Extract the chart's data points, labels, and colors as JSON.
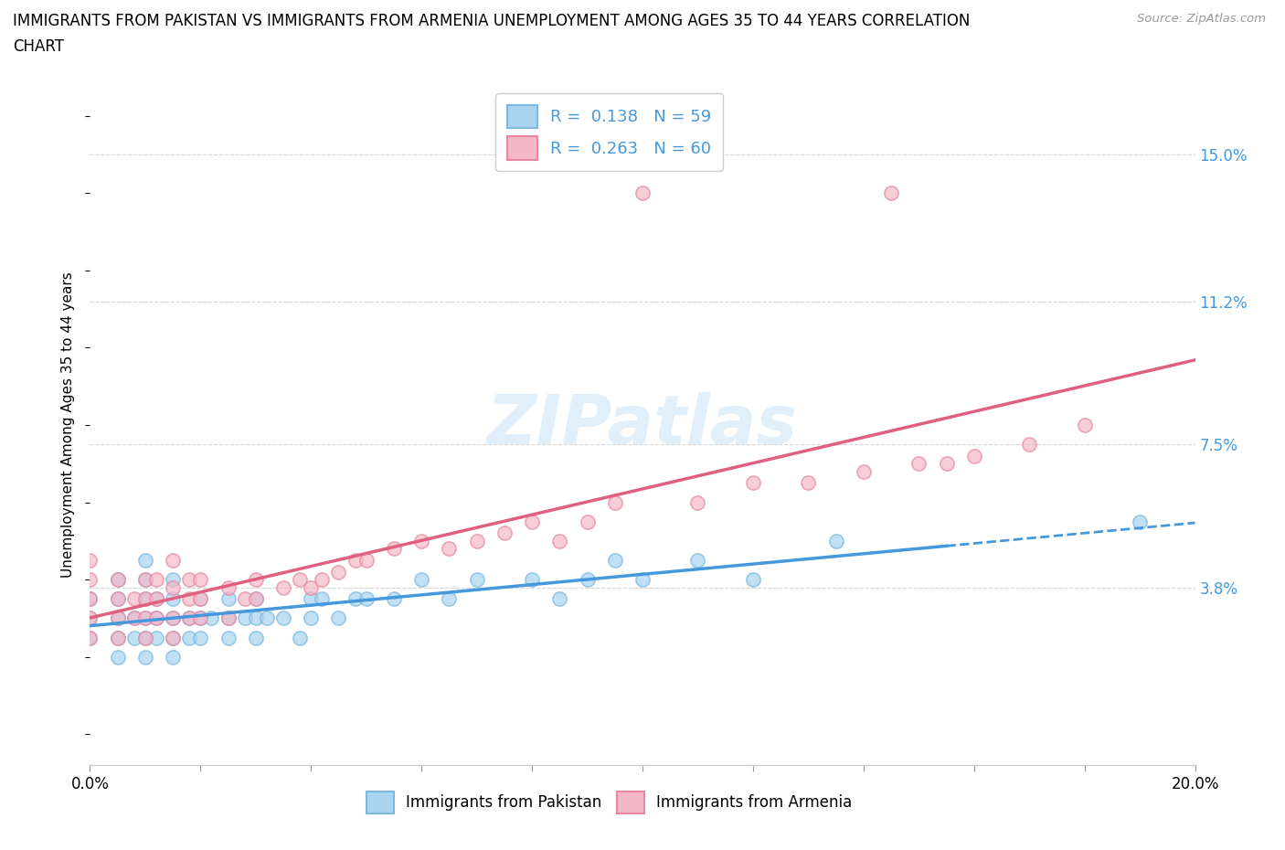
{
  "title_line1": "IMMIGRANTS FROM PAKISTAN VS IMMIGRANTS FROM ARMENIA UNEMPLOYMENT AMONG AGES 35 TO 44 YEARS CORRELATION",
  "title_line2": "CHART",
  "source_text": "Source: ZipAtlas.com",
  "ylabel": "Unemployment Among Ages 35 to 44 years",
  "xmin": 0.0,
  "xmax": 0.2,
  "ymin": -0.008,
  "ymax": 0.168,
  "yticks": [
    0.0,
    0.038,
    0.075,
    0.112,
    0.15
  ],
  "ytick_labels": [
    "",
    "3.8%",
    "7.5%",
    "11.2%",
    "15.0%"
  ],
  "watermark": "ZIPatlas",
  "pakistan_color": "#a8d4f0",
  "pakistan_edge_color": "#7ab8e0",
  "armenia_color": "#f5b8c8",
  "armenia_edge_color": "#e888a0",
  "pakistan_line_color": "#4499dd",
  "armenia_line_color": "#e06080",
  "pakistan_R": 0.138,
  "pakistan_N": 59,
  "armenia_R": 0.263,
  "armenia_N": 60,
  "pakistan_scatter_x": [
    0.0,
    0.0,
    0.0,
    0.005,
    0.005,
    0.005,
    0.005,
    0.005,
    0.008,
    0.008,
    0.01,
    0.01,
    0.01,
    0.01,
    0.01,
    0.01,
    0.012,
    0.012,
    0.012,
    0.015,
    0.015,
    0.015,
    0.015,
    0.015,
    0.018,
    0.018,
    0.02,
    0.02,
    0.02,
    0.022,
    0.025,
    0.025,
    0.025,
    0.028,
    0.03,
    0.03,
    0.03,
    0.032,
    0.035,
    0.038,
    0.04,
    0.04,
    0.042,
    0.045,
    0.048,
    0.05,
    0.055,
    0.06,
    0.065,
    0.07,
    0.08,
    0.085,
    0.09,
    0.095,
    0.1,
    0.11,
    0.12,
    0.135,
    0.19
  ],
  "pakistan_scatter_y": [
    0.025,
    0.03,
    0.035,
    0.02,
    0.025,
    0.03,
    0.035,
    0.04,
    0.025,
    0.03,
    0.02,
    0.025,
    0.03,
    0.035,
    0.04,
    0.045,
    0.025,
    0.03,
    0.035,
    0.02,
    0.025,
    0.03,
    0.035,
    0.04,
    0.025,
    0.03,
    0.025,
    0.03,
    0.035,
    0.03,
    0.025,
    0.03,
    0.035,
    0.03,
    0.025,
    0.03,
    0.035,
    0.03,
    0.03,
    0.025,
    0.03,
    0.035,
    0.035,
    0.03,
    0.035,
    0.035,
    0.035,
    0.04,
    0.035,
    0.04,
    0.04,
    0.035,
    0.04,
    0.045,
    0.04,
    0.045,
    0.04,
    0.05,
    0.055
  ],
  "armenia_scatter_x": [
    0.0,
    0.0,
    0.0,
    0.0,
    0.0,
    0.005,
    0.005,
    0.005,
    0.005,
    0.008,
    0.008,
    0.01,
    0.01,
    0.01,
    0.01,
    0.012,
    0.012,
    0.012,
    0.015,
    0.015,
    0.015,
    0.015,
    0.018,
    0.018,
    0.018,
    0.02,
    0.02,
    0.02,
    0.025,
    0.025,
    0.028,
    0.03,
    0.03,
    0.035,
    0.038,
    0.04,
    0.042,
    0.045,
    0.048,
    0.05,
    0.055,
    0.06,
    0.065,
    0.07,
    0.075,
    0.08,
    0.085,
    0.09,
    0.095,
    0.1,
    0.11,
    0.12,
    0.13,
    0.14,
    0.145,
    0.15,
    0.155,
    0.16,
    0.17,
    0.18
  ],
  "armenia_scatter_y": [
    0.025,
    0.03,
    0.035,
    0.04,
    0.045,
    0.025,
    0.03,
    0.035,
    0.04,
    0.03,
    0.035,
    0.025,
    0.03,
    0.035,
    0.04,
    0.03,
    0.035,
    0.04,
    0.025,
    0.03,
    0.038,
    0.045,
    0.03,
    0.035,
    0.04,
    0.03,
    0.035,
    0.04,
    0.03,
    0.038,
    0.035,
    0.035,
    0.04,
    0.038,
    0.04,
    0.038,
    0.04,
    0.042,
    0.045,
    0.045,
    0.048,
    0.05,
    0.048,
    0.05,
    0.052,
    0.055,
    0.05,
    0.055,
    0.06,
    0.14,
    0.06,
    0.065,
    0.065,
    0.068,
    0.14,
    0.07,
    0.07,
    0.072,
    0.075,
    0.08
  ]
}
